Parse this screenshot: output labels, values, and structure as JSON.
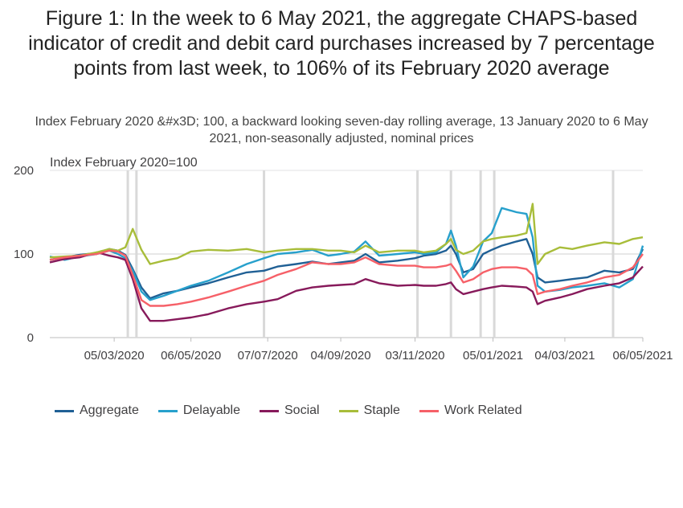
{
  "title": "Figure 1: In the week to 6 May 2021, the aggregate CHAPS-based indicator of credit and debit card purchases increased by 7 percentage points from last week, to 106% of its February 2020 average",
  "subtitle": "Index February 2020 &#x3D; 100, a backward looking seven-day rolling average, 13 January 2020 to 6 May 2021, non-seasonally adjusted, nominal prices",
  "chart_data": {
    "type": "line",
    "title": "Figure 1: In the week to 6 May 2021, the aggregate CHAPS-based indicator of credit and debit card purchases increased by 7 percentage points from last week, to 106% of its February 2020 average",
    "subtitle": "Index February 2020 &#x3D; 100, a backward looking seven-day rolling average, 13 January 2020 to 6 May 2021, non-seasonally adjusted, nominal prices",
    "ylabel": "Index February 2020=100",
    "xlabel": "",
    "ylim": [
      0,
      200
    ],
    "yticks": [
      0,
      100,
      200
    ],
    "x_range": [
      "2020-01-13",
      "2021-05-06"
    ],
    "xticks": [
      "05/03/2020",
      "06/05/2020",
      "07/07/2020",
      "04/09/2020",
      "03/11/2020",
      "05/01/2021",
      "04/03/2021",
      "06/05/2021"
    ],
    "xticks_dates": [
      "2020-03-05",
      "2020-05-06",
      "2020-07-07",
      "2020-09-04",
      "2020-11-03",
      "2021-01-05",
      "2021-03-04",
      "2021-05-06"
    ],
    "reference_line": 100,
    "grid": "horizontal",
    "vertical_markers": [
      "2020-03-16",
      "2020-03-23",
      "2020-07-04",
      "2020-11-05",
      "2020-12-02",
      "2020-12-26",
      "2021-01-06",
      "2021-04-12"
    ],
    "legend_position": "bottom",
    "series": [
      {
        "name": "Aggregate",
        "color": "#206095",
        "points": [
          [
            "2020-01-13",
            93
          ],
          [
            "2020-01-25",
            96
          ],
          [
            "2020-02-06",
            99
          ],
          [
            "2020-02-20",
            101
          ],
          [
            "2020-03-01",
            106
          ],
          [
            "2020-03-08",
            104
          ],
          [
            "2020-03-14",
            99
          ],
          [
            "2020-03-20",
            82
          ],
          [
            "2020-03-27",
            60
          ],
          [
            "2020-04-03",
            47
          ],
          [
            "2020-04-14",
            53
          ],
          [
            "2020-04-25",
            56
          ],
          [
            "2020-05-06",
            60
          ],
          [
            "2020-05-20",
            65
          ],
          [
            "2020-06-05",
            72
          ],
          [
            "2020-06-20",
            78
          ],
          [
            "2020-07-04",
            80
          ],
          [
            "2020-07-15",
            85
          ],
          [
            "2020-07-30",
            88
          ],
          [
            "2020-08-12",
            91
          ],
          [
            "2020-08-25",
            88
          ],
          [
            "2020-09-04",
            90
          ],
          [
            "2020-09-15",
            92
          ],
          [
            "2020-09-24",
            100
          ],
          [
            "2020-10-05",
            90
          ],
          [
            "2020-10-20",
            92
          ],
          [
            "2020-11-03",
            95
          ],
          [
            "2020-11-10",
            98
          ],
          [
            "2020-11-20",
            100
          ],
          [
            "2020-11-28",
            104
          ],
          [
            "2020-12-02",
            110
          ],
          [
            "2020-12-06",
            100
          ],
          [
            "2020-12-12",
            78
          ],
          [
            "2020-12-20",
            82
          ],
          [
            "2020-12-28",
            100
          ],
          [
            "2021-01-04",
            105
          ],
          [
            "2021-01-12",
            110
          ],
          [
            "2021-01-24",
            115
          ],
          [
            "2021-02-01",
            118
          ],
          [
            "2021-02-06",
            100
          ],
          [
            "2021-02-10",
            72
          ],
          [
            "2021-02-16",
            66
          ],
          [
            "2021-02-28",
            68
          ],
          [
            "2021-03-10",
            70
          ],
          [
            "2021-03-22",
            72
          ],
          [
            "2021-04-05",
            80
          ],
          [
            "2021-04-17",
            78
          ],
          [
            "2021-04-28",
            82
          ],
          [
            "2021-05-06",
            106
          ]
        ]
      },
      {
        "name": "Delayable",
        "color": "#27a0cc",
        "points": [
          [
            "2020-01-13",
            97
          ],
          [
            "2020-01-25",
            93
          ],
          [
            "2020-02-06",
            97
          ],
          [
            "2020-02-20",
            100
          ],
          [
            "2020-03-01",
            104
          ],
          [
            "2020-03-08",
            100
          ],
          [
            "2020-03-14",
            95
          ],
          [
            "2020-03-20",
            80
          ],
          [
            "2020-03-27",
            55
          ],
          [
            "2020-04-03",
            45
          ],
          [
            "2020-04-14",
            50
          ],
          [
            "2020-04-25",
            56
          ],
          [
            "2020-05-06",
            62
          ],
          [
            "2020-05-20",
            68
          ],
          [
            "2020-06-05",
            78
          ],
          [
            "2020-06-20",
            88
          ],
          [
            "2020-07-04",
            95
          ],
          [
            "2020-07-15",
            100
          ],
          [
            "2020-07-30",
            102
          ],
          [
            "2020-08-12",
            105
          ],
          [
            "2020-08-25",
            98
          ],
          [
            "2020-09-04",
            100
          ],
          [
            "2020-09-15",
            103
          ],
          [
            "2020-09-24",
            115
          ],
          [
            "2020-10-05",
            98
          ],
          [
            "2020-10-20",
            100
          ],
          [
            "2020-11-03",
            102
          ],
          [
            "2020-11-10",
            100
          ],
          [
            "2020-11-20",
            102
          ],
          [
            "2020-11-28",
            112
          ],
          [
            "2020-12-02",
            128
          ],
          [
            "2020-12-06",
            110
          ],
          [
            "2020-12-12",
            72
          ],
          [
            "2020-12-20",
            85
          ],
          [
            "2020-12-28",
            115
          ],
          [
            "2021-01-04",
            125
          ],
          [
            "2021-01-12",
            155
          ],
          [
            "2021-01-24",
            150
          ],
          [
            "2021-02-01",
            148
          ],
          [
            "2021-02-06",
            120
          ],
          [
            "2021-02-10",
            62
          ],
          [
            "2021-02-16",
            55
          ],
          [
            "2021-02-28",
            57
          ],
          [
            "2021-03-10",
            60
          ],
          [
            "2021-03-22",
            62
          ],
          [
            "2021-04-05",
            65
          ],
          [
            "2021-04-17",
            60
          ],
          [
            "2021-04-28",
            70
          ],
          [
            "2021-05-06",
            110
          ]
        ]
      },
      {
        "name": "Social",
        "color": "#871a5b",
        "points": [
          [
            "2020-01-13",
            90
          ],
          [
            "2020-01-25",
            94
          ],
          [
            "2020-02-06",
            96
          ],
          [
            "2020-02-20",
            102
          ],
          [
            "2020-03-01",
            98
          ],
          [
            "2020-03-08",
            96
          ],
          [
            "2020-03-14",
            93
          ],
          [
            "2020-03-20",
            70
          ],
          [
            "2020-03-27",
            35
          ],
          [
            "2020-04-03",
            20
          ],
          [
            "2020-04-14",
            20
          ],
          [
            "2020-04-25",
            22
          ],
          [
            "2020-05-06",
            24
          ],
          [
            "2020-05-20",
            28
          ],
          [
            "2020-06-05",
            35
          ],
          [
            "2020-06-20",
            40
          ],
          [
            "2020-07-04",
            43
          ],
          [
            "2020-07-15",
            46
          ],
          [
            "2020-07-30",
            56
          ],
          [
            "2020-08-12",
            60
          ],
          [
            "2020-08-25",
            62
          ],
          [
            "2020-09-04",
            63
          ],
          [
            "2020-09-15",
            64
          ],
          [
            "2020-09-24",
            70
          ],
          [
            "2020-10-05",
            65
          ],
          [
            "2020-10-20",
            62
          ],
          [
            "2020-11-03",
            63
          ],
          [
            "2020-11-10",
            62
          ],
          [
            "2020-11-20",
            62
          ],
          [
            "2020-11-28",
            64
          ],
          [
            "2020-12-02",
            66
          ],
          [
            "2020-12-06",
            58
          ],
          [
            "2020-12-12",
            52
          ],
          [
            "2020-12-20",
            55
          ],
          [
            "2020-12-28",
            58
          ],
          [
            "2021-01-04",
            60
          ],
          [
            "2021-01-12",
            62
          ],
          [
            "2021-01-24",
            61
          ],
          [
            "2021-02-01",
            60
          ],
          [
            "2021-02-06",
            55
          ],
          [
            "2021-02-10",
            40
          ],
          [
            "2021-02-16",
            44
          ],
          [
            "2021-02-28",
            48
          ],
          [
            "2021-03-10",
            52
          ],
          [
            "2021-03-22",
            58
          ],
          [
            "2021-04-05",
            62
          ],
          [
            "2021-04-17",
            65
          ],
          [
            "2021-04-28",
            72
          ],
          [
            "2021-05-06",
            85
          ]
        ]
      },
      {
        "name": "Staple",
        "color": "#a8bd3a",
        "points": [
          [
            "2020-01-13",
            96
          ],
          [
            "2020-01-25",
            97
          ],
          [
            "2020-02-06",
            98
          ],
          [
            "2020-02-20",
            102
          ],
          [
            "2020-03-01",
            106
          ],
          [
            "2020-03-08",
            104
          ],
          [
            "2020-03-14",
            108
          ],
          [
            "2020-03-20",
            130
          ],
          [
            "2020-03-27",
            105
          ],
          [
            "2020-04-03",
            88
          ],
          [
            "2020-04-14",
            92
          ],
          [
            "2020-04-25",
            95
          ],
          [
            "2020-05-06",
            103
          ],
          [
            "2020-05-20",
            105
          ],
          [
            "2020-06-05",
            104
          ],
          [
            "2020-06-20",
            106
          ],
          [
            "2020-07-04",
            102
          ],
          [
            "2020-07-15",
            104
          ],
          [
            "2020-07-30",
            106
          ],
          [
            "2020-08-12",
            106
          ],
          [
            "2020-08-25",
            104
          ],
          [
            "2020-09-04",
            104
          ],
          [
            "2020-09-15",
            102
          ],
          [
            "2020-09-24",
            110
          ],
          [
            "2020-10-05",
            102
          ],
          [
            "2020-10-20",
            104
          ],
          [
            "2020-11-03",
            104
          ],
          [
            "2020-11-10",
            102
          ],
          [
            "2020-11-20",
            104
          ],
          [
            "2020-11-28",
            112
          ],
          [
            "2020-12-02",
            118
          ],
          [
            "2020-12-06",
            105
          ],
          [
            "2020-12-12",
            100
          ],
          [
            "2020-12-20",
            104
          ],
          [
            "2020-12-28",
            115
          ],
          [
            "2021-01-04",
            118
          ],
          [
            "2021-01-12",
            120
          ],
          [
            "2021-01-24",
            122
          ],
          [
            "2021-02-01",
            125
          ],
          [
            "2021-02-06",
            160
          ],
          [
            "2021-02-10",
            88
          ],
          [
            "2021-02-16",
            100
          ],
          [
            "2021-02-28",
            108
          ],
          [
            "2021-03-10",
            106
          ],
          [
            "2021-03-22",
            110
          ],
          [
            "2021-04-05",
            114
          ],
          [
            "2021-04-17",
            112
          ],
          [
            "2021-04-28",
            118
          ],
          [
            "2021-05-06",
            120
          ]
        ]
      },
      {
        "name": "Work Related",
        "color": "#f66068",
        "points": [
          [
            "2020-01-13",
            93
          ],
          [
            "2020-01-25",
            96
          ],
          [
            "2020-02-06",
            98
          ],
          [
            "2020-02-20",
            100
          ],
          [
            "2020-03-01",
            104
          ],
          [
            "2020-03-08",
            103
          ],
          [
            "2020-03-14",
            98
          ],
          [
            "2020-03-20",
            75
          ],
          [
            "2020-03-27",
            45
          ],
          [
            "2020-04-03",
            38
          ],
          [
            "2020-04-14",
            38
          ],
          [
            "2020-04-25",
            40
          ],
          [
            "2020-05-06",
            43
          ],
          [
            "2020-05-20",
            48
          ],
          [
            "2020-06-05",
            55
          ],
          [
            "2020-06-20",
            62
          ],
          [
            "2020-07-04",
            68
          ],
          [
            "2020-07-15",
            75
          ],
          [
            "2020-07-30",
            82
          ],
          [
            "2020-08-12",
            90
          ],
          [
            "2020-08-25",
            88
          ],
          [
            "2020-09-04",
            88
          ],
          [
            "2020-09-15",
            90
          ],
          [
            "2020-09-24",
            96
          ],
          [
            "2020-10-05",
            88
          ],
          [
            "2020-10-20",
            86
          ],
          [
            "2020-11-03",
            86
          ],
          [
            "2020-11-10",
            84
          ],
          [
            "2020-11-20",
            84
          ],
          [
            "2020-11-28",
            86
          ],
          [
            "2020-12-02",
            88
          ],
          [
            "2020-12-06",
            80
          ],
          [
            "2020-12-12",
            66
          ],
          [
            "2020-12-20",
            70
          ],
          [
            "2020-12-28",
            78
          ],
          [
            "2021-01-04",
            82
          ],
          [
            "2021-01-12",
            84
          ],
          [
            "2021-01-24",
            84
          ],
          [
            "2021-02-01",
            82
          ],
          [
            "2021-02-06",
            75
          ],
          [
            "2021-02-10",
            52
          ],
          [
            "2021-02-16",
            55
          ],
          [
            "2021-02-28",
            58
          ],
          [
            "2021-03-10",
            62
          ],
          [
            "2021-03-22",
            66
          ],
          [
            "2021-04-05",
            72
          ],
          [
            "2021-04-17",
            75
          ],
          [
            "2021-04-28",
            84
          ],
          [
            "2021-05-06",
            100
          ]
        ]
      }
    ]
  }
}
